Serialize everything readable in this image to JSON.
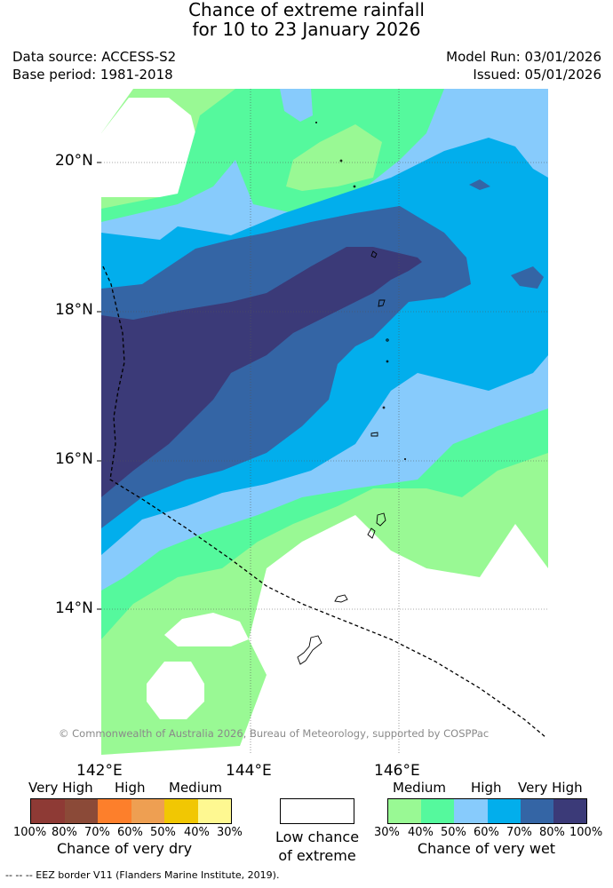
{
  "title": {
    "line1": "Chance of extreme rainfall",
    "line2": "for 10 to 23 January 2026"
  },
  "meta": {
    "data_source": "Data source: ACCESS-S2",
    "base_period": "Base period: 1981-2018",
    "model_run": "Model Run: 03/01/2026",
    "issued": "Issued: 05/01/2026"
  },
  "map": {
    "lat_ticks": [
      "20°N",
      "18°N",
      "16°N",
      "14°N"
    ],
    "lon_ticks": [
      "142°E",
      "144°E",
      "146°E"
    ],
    "copyright": "© Commonwealth of Australia 2026, Bureau of Meteorology, supported by COSPPac",
    "zone_colors": {
      "wet30": "#99f994",
      "wet40": "#55f99d",
      "wet50": "#87cbfc",
      "wet60": "#02aeec",
      "wet70": "#3465a5",
      "wet80": "#3b3a78"
    }
  },
  "legend_dry": {
    "categories": [
      "Very High",
      "High",
      "Medium"
    ],
    "swatches": [
      "#8e3a35",
      "#8b4a38",
      "#fd7f2b",
      "#ee9f52",
      "#f1c703",
      "#fef891"
    ],
    "ticks": [
      "100%",
      "80%",
      "70%",
      "60%",
      "50%",
      "40%",
      "30%"
    ],
    "caption": "Chance of very dry"
  },
  "legend_low": {
    "swatch": "#ffffff",
    "caption_line1": "Low chance",
    "caption_line2": "of extreme"
  },
  "legend_wet": {
    "categories": [
      "Medium",
      "High",
      "Very High"
    ],
    "swatches": [
      "#99f994",
      "#55f99d",
      "#87cbfc",
      "#02aeec",
      "#3465a5",
      "#3b3a78"
    ],
    "ticks": [
      "30%",
      "40%",
      "50%",
      "60%",
      "70%",
      "80%",
      "100%"
    ],
    "caption": "Chance of very wet"
  },
  "footer": {
    "eez": "--  --  -- EEZ border V11 (Flanders Marine Institute, 2019)."
  }
}
